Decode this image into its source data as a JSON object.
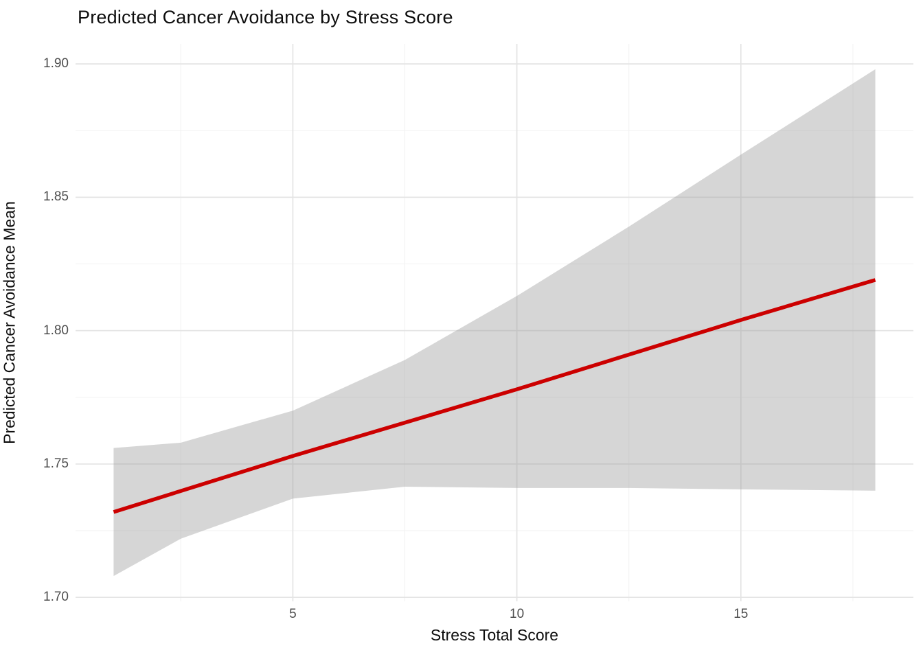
{
  "title": "Predicted Cancer Avoidance by Stress Score",
  "chart_data": {
    "type": "line",
    "title": "Predicted Cancer Avoidance by Stress Score",
    "xlabel": "Stress Total Score",
    "ylabel": "Predicted Cancer Avoidance Mean",
    "xlim": [
      0.15,
      18.85
    ],
    "ylim": [
      1.6985,
      1.9075
    ],
    "x_major_ticks": [
      5,
      10,
      15
    ],
    "x_major_tick_labels": [
      "5",
      "10",
      "15"
    ],
    "x_minor_ticks": [
      2.5,
      7.5,
      12.5,
      17.5
    ],
    "y_major_ticks": [
      1.7,
      1.75,
      1.8,
      1.85,
      1.9
    ],
    "y_major_tick_labels": [
      "1.70",
      "1.75",
      "1.80",
      "1.85",
      "1.90"
    ],
    "y_minor_ticks": [
      1.725,
      1.775,
      1.825,
      1.875
    ],
    "grid": "on",
    "legend": "none",
    "series": [
      {
        "name": "fitted-regression-line",
        "x": [
          1,
          5,
          10,
          15,
          18
        ],
        "y": [
          1.732,
          1.753,
          1.778,
          1.804,
          1.819
        ],
        "color": "#CC0000"
      }
    ],
    "confidence_band": {
      "x": [
        1,
        2.5,
        5,
        7.5,
        10,
        12.5,
        15,
        18
      ],
      "upper": [
        1.756,
        1.758,
        1.77,
        1.789,
        1.813,
        1.839,
        1.866,
        1.898
      ],
      "lower": [
        1.708,
        1.722,
        1.737,
        1.7415,
        1.741,
        1.741,
        1.7405,
        1.74
      ],
      "fill_color": "#999999",
      "fill_opacity": 0.4
    },
    "colors": {
      "line": "#CC0000",
      "band_flat": "#D6D6D6",
      "grid_major": "#E4E4E4",
      "grid_minor": "#F2F2F2",
      "tick_text": "#4D4D4D",
      "title_text": "#0D0D0D"
    }
  }
}
